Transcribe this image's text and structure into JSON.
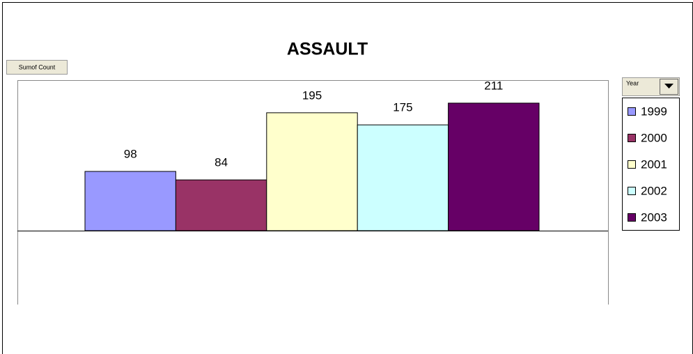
{
  "chart_data": {
    "type": "bar",
    "title": "ASSAULT",
    "data_field": "Sumof Count",
    "series_field": "Year",
    "series": [
      {
        "name": "1999",
        "color": "#9999ff",
        "values": [
          98
        ]
      },
      {
        "name": "2000",
        "color": "#993366",
        "values": [
          84
        ]
      },
      {
        "name": "2001",
        "color": "#ffffcc",
        "values": [
          195
        ]
      },
      {
        "name": "2002",
        "color": "#ccffff",
        "values": [
          175
        ]
      },
      {
        "name": "2003",
        "color": "#660066",
        "values": [
          211
        ]
      }
    ],
    "ylim": [
      0,
      249
    ],
    "legend": "right"
  }
}
